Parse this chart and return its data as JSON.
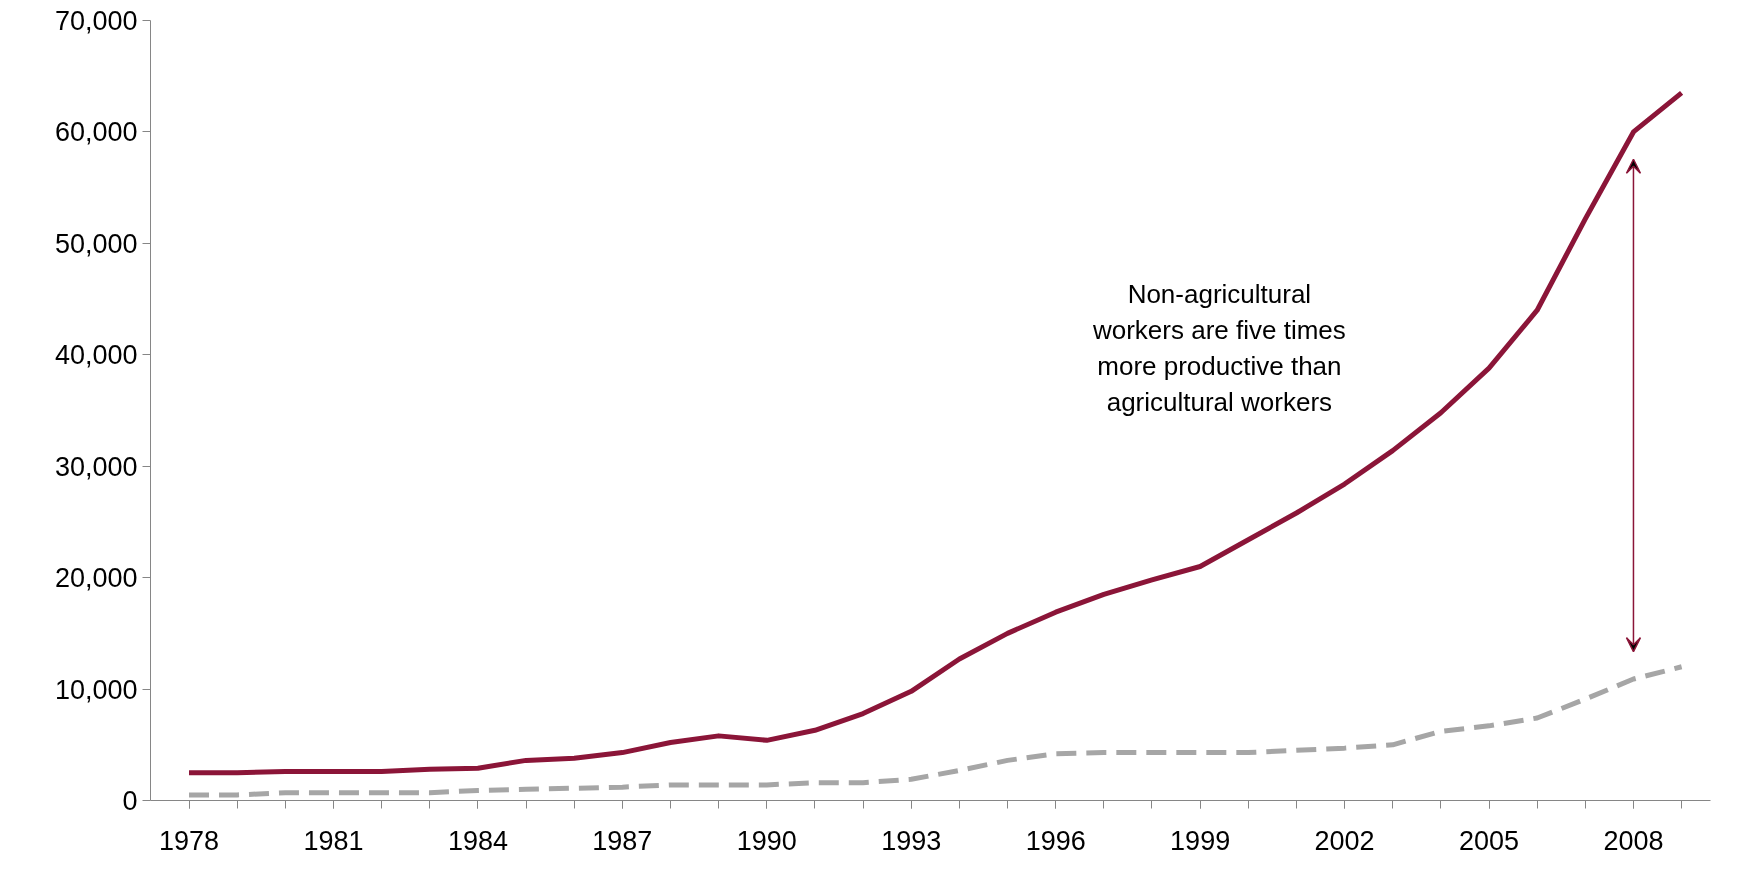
{
  "chart_data": {
    "type": "line",
    "x": [
      1978,
      1979,
      1980,
      1981,
      1982,
      1983,
      1984,
      1985,
      1986,
      1987,
      1988,
      1989,
      1990,
      1991,
      1992,
      1993,
      1994,
      1995,
      1996,
      1997,
      1998,
      1999,
      2000,
      2001,
      2002,
      2003,
      2004,
      2005,
      2006,
      2007,
      2008,
      2009
    ],
    "series": [
      {
        "color": "#8b1538",
        "line_style": "solid",
        "values": [
          2500,
          2500,
          2600,
          2600,
          2600,
          2800,
          2900,
          3600,
          3800,
          4300,
          5200,
          5800,
          5400,
          6300,
          7800,
          9800,
          12700,
          15000,
          16900,
          18500,
          19800,
          21000,
          23400,
          25800,
          28400,
          31400,
          34800,
          38800,
          44000,
          52200,
          60000,
          63500
        ]
      },
      {
        "color": "#a6a6a6",
        "line_style": "dashed",
        "values": [
          500,
          500,
          700,
          700,
          700,
          700,
          900,
          1000,
          1100,
          1200,
          1400,
          1400,
          1400,
          1600,
          1600,
          1900,
          2700,
          3600,
          4200,
          4300,
          4300,
          4300,
          4300,
          4500,
          4700,
          5000,
          6200,
          6700,
          7400,
          9100,
          10900,
          12000
        ]
      }
    ],
    "xlim": [
      1977.2,
      2009.6
    ],
    "xticks": [
      1978,
      1981,
      1984,
      1987,
      1990,
      1993,
      1996,
      1999,
      2002,
      2005,
      2008
    ],
    "ylim": [
      0,
      70000
    ],
    "yticks": [
      {
        "value": 0,
        "label": "0"
      },
      {
        "value": 10000,
        "label": "10,000"
      },
      {
        "value": 20000,
        "label": "20,000"
      },
      {
        "value": 30000,
        "label": "30,000"
      },
      {
        "value": 40000,
        "label": "40,000"
      },
      {
        "value": 50000,
        "label": "50,000"
      },
      {
        "value": 60000,
        "label": "60,000"
      },
      {
        "value": 70000,
        "label": "70,000"
      }
    ],
    "grid": false,
    "annotations": [
      "Non-agricultural workers are five times more productive than agricultural workers"
    ]
  }
}
